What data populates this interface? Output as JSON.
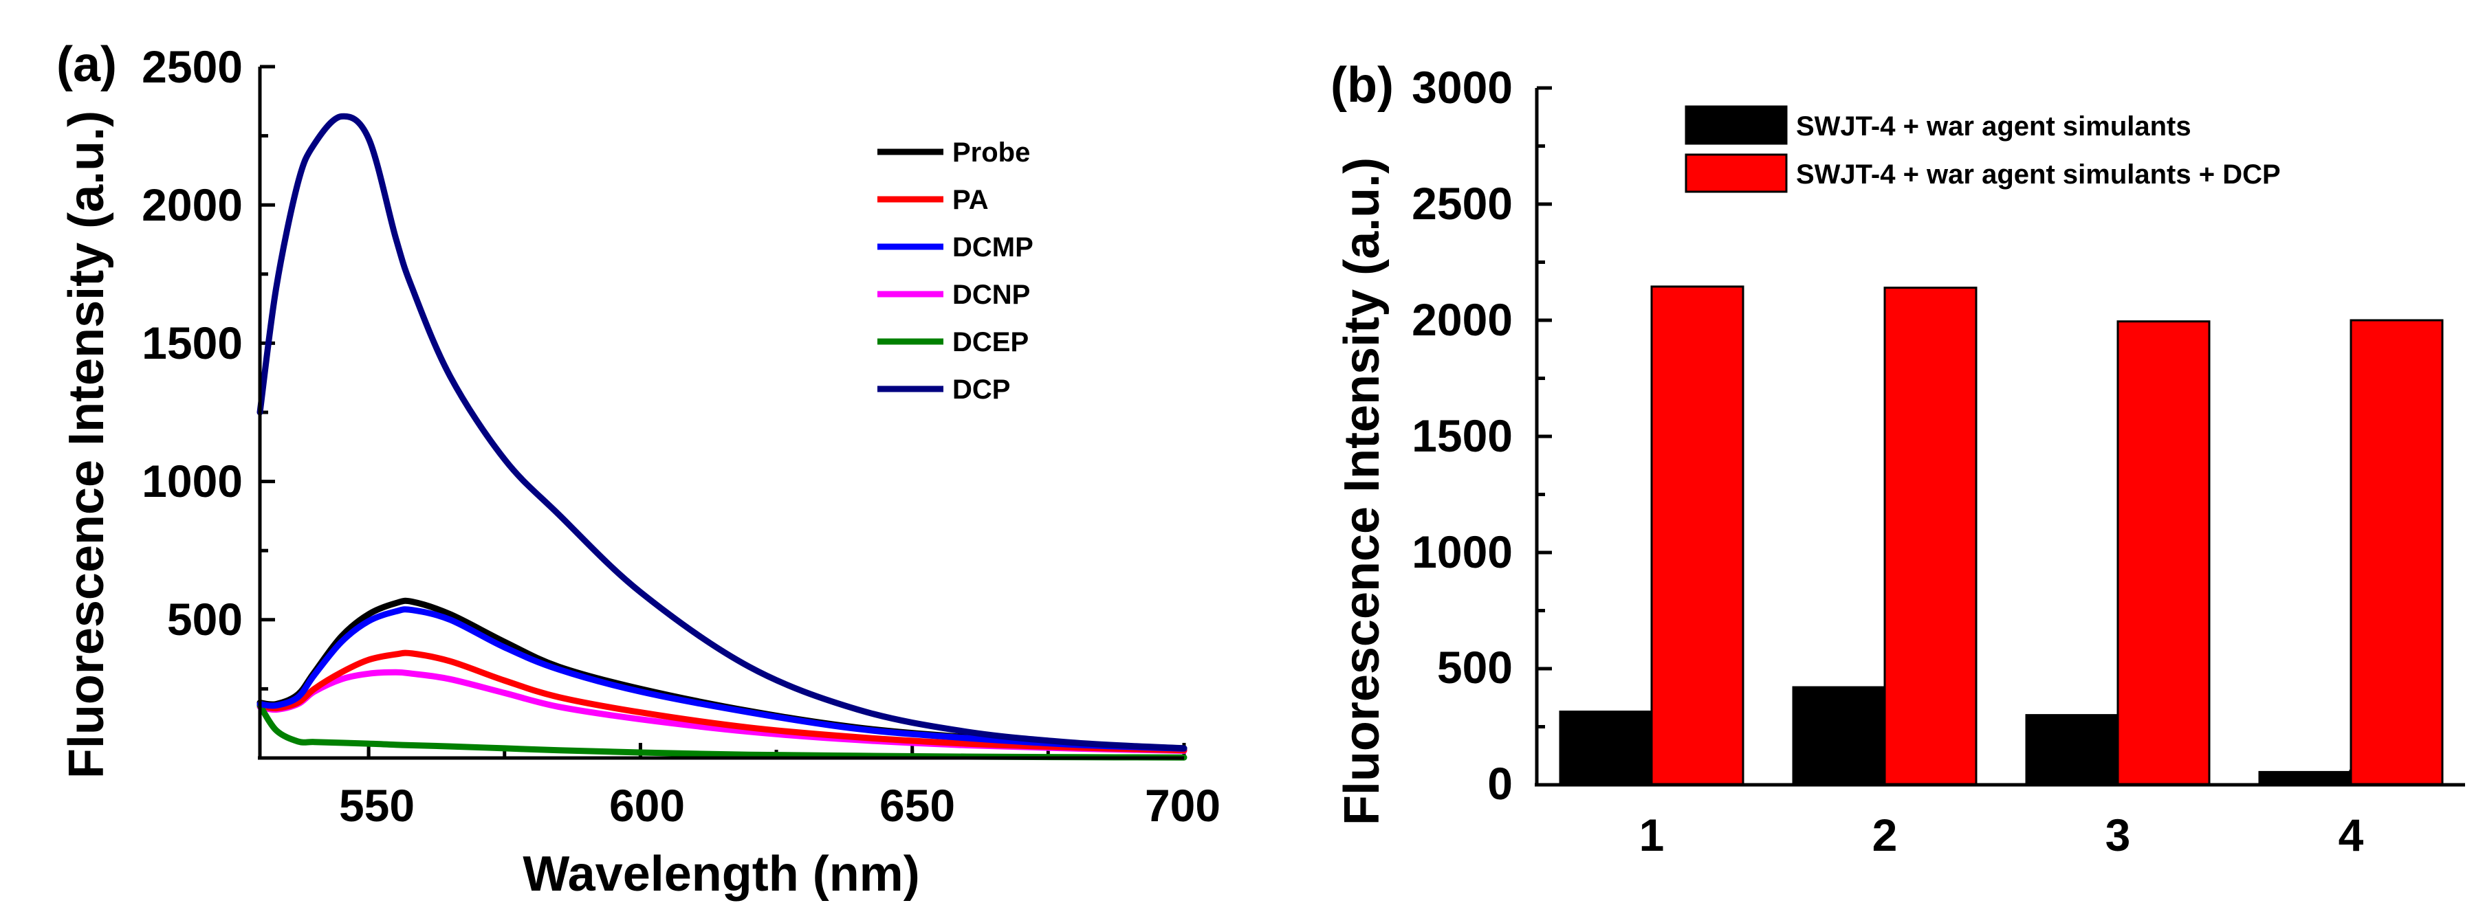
{
  "chart_data": [
    {
      "type": "line",
      "panel": "(a)",
      "title": "",
      "xlabel": "Wavelength (nm)",
      "ylabel": "Fluorescence Intensity (a.u.)",
      "xlim": [
        530,
        700
      ],
      "ylim": [
        0,
        2500
      ],
      "xticks": [
        "550",
        "600",
        "650",
        "700"
      ],
      "yticks": [
        "500",
        "1000",
        "1500",
        "2000",
        "2500"
      ],
      "legend_position": "top-right",
      "x": [
        530,
        533,
        537,
        540,
        545,
        550,
        555,
        558,
        565,
        575,
        585,
        600,
        620,
        640,
        660,
        680,
        700
      ],
      "series": [
        {
          "name": "Probe",
          "color": "#000000",
          "values": [
            200,
            195,
            230,
            310,
            440,
            520,
            560,
            565,
            520,
            420,
            330,
            250,
            170,
            110,
            75,
            50,
            35
          ]
        },
        {
          "name": "PA",
          "color": "#ff0000",
          "values": [
            190,
            180,
            200,
            250,
            310,
            355,
            375,
            378,
            350,
            280,
            220,
            165,
            110,
            75,
            52,
            38,
            28
          ]
        },
        {
          "name": "DCMP",
          "color": "#0000ff",
          "values": [
            195,
            190,
            220,
            300,
            420,
            495,
            530,
            535,
            500,
            400,
            320,
            240,
            165,
            105,
            72,
            48,
            34
          ]
        },
        {
          "name": "DCNP",
          "color": "#ff00ff",
          "values": [
            185,
            175,
            195,
            240,
            285,
            305,
            310,
            305,
            285,
            235,
            185,
            140,
            95,
            65,
            46,
            34,
            26
          ]
        },
        {
          "name": "DCEP",
          "color": "#008000",
          "values": [
            190,
            100,
            60,
            58,
            55,
            52,
            48,
            46,
            42,
            35,
            28,
            20,
            12,
            8,
            5,
            3,
            2
          ]
        },
        {
          "name": "DCP",
          "color": "#000080",
          "values": [
            1250,
            1700,
            2080,
            2220,
            2320,
            2240,
            1880,
            1700,
            1380,
            1080,
            880,
            600,
            330,
            175,
            95,
            55,
            35
          ]
        }
      ]
    },
    {
      "type": "bar",
      "panel": "(b)",
      "title": "",
      "xlabel": "",
      "ylabel": "Fluorescence Intensity (a.u.)",
      "categories": [
        "1",
        "2",
        "3",
        "4"
      ],
      "ylim": [
        0,
        3000
      ],
      "yticks": [
        "0",
        "500",
        "1000",
        "1500",
        "2000",
        "2500",
        "3000"
      ],
      "legend_position": "top",
      "series": [
        {
          "name": "SWJT-4 + war agent simulants",
          "color": "#000000",
          "values": [
            315,
            420,
            300,
            55
          ]
        },
        {
          "name": "SWJT-4 + war agent simulants + DCP",
          "color": "#ff0000",
          "values": [
            2145,
            2140,
            1995,
            2000
          ]
        }
      ]
    }
  ]
}
